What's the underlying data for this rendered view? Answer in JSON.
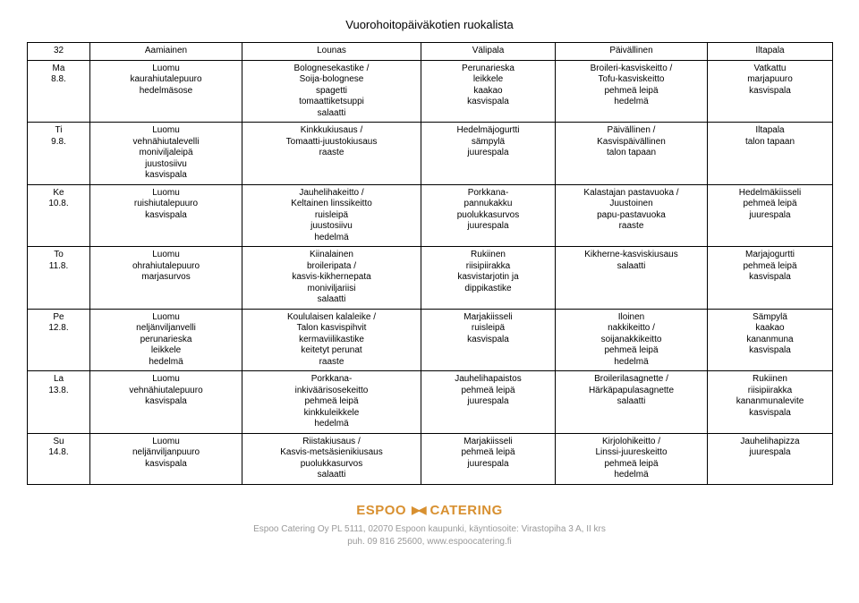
{
  "title": "Vuorohoitopäiväkotien ruokalista",
  "week": "32",
  "headers": [
    "Aamiainen",
    "Lounas",
    "Välipala",
    "Päivällinen",
    "Iltapala"
  ],
  "rows": [
    {
      "day": "Ma\n8.8.",
      "cells": [
        "Luomu\nkaurahiutalepuuro\nhedelmäsose",
        "Bolognesekastike /\nSoija-bolognese\nspagetti\ntomaattiketsuppi\nsalaatti",
        "Perunarieska\nleikkele\nkaakao\nkasvispala",
        "Broileri-kasviskeitto /\nTofu-kasviskeitto\npehmeä leipä\nhedelmä",
        "Vatkattu\nmarjapuuro\nkasvispala"
      ]
    },
    {
      "day": "Ti\n9.8.",
      "cells": [
        "Luomu\nvehnähiutalevelli\nmoniviljaleipä\njuustosiivu\nkasvispala",
        "Kinkkukiusaus /\nTomaatti-juustokiusaus\nraaste",
        "Hedelmäjogurtti\nsämpylä\njuurespala",
        "Päivällinen /\nKasvispäivällinen\ntalon tapaan",
        "Iltapala\ntalon tapaan"
      ]
    },
    {
      "day": "Ke\n10.8.",
      "cells": [
        "Luomu\nruishiutalepuuro\nkasvispala",
        "Jauhelihakeitto /\nKeltainen linssikeitto\nruisleipä\njuustosiivu\nhedelmä",
        "Porkkana-\npannukakku\npuolukkasurvos\njuurespala",
        "Kalastajan pastavuoka /\nJuustoinen\npapu-pastavuoka\nraaste",
        "Hedelmäkiisseli\npehmeä leipä\njuurespala"
      ]
    },
    {
      "day": "To\n11.8.",
      "cells": [
        "Luomu\nohrahiutalepuuro\nmarjasurvos",
        "Kiinalainen\nbroileripata /\nkasvis-kikhernepata\nmoniviljariisi\nsalaatti",
        "Rukiinen\nriisipiirakka\nkasvistarjotin ja\ndippikastike",
        "Kikherne-kasviskiusaus\nsalaatti",
        "Marjajogurtti\npehmeä leipä\nkasvispala"
      ]
    },
    {
      "day": "Pe\n12.8.",
      "cells": [
        "Luomu\nneljänviljanvelli\nperunarieska\nleikkele\nhedelmä",
        "Koululaisen kalaleike /\nTalon kasvispihvit\nkermaviilikastike\nkeitetyt perunat\nraaste",
        "Marjakiisseli\nruisleipä\nkasvispala",
        "Iloinen\nnakkikeitto /\nsoijanakkikeitto\npehmeä leipä\nhedelmä",
        "Sämpylä\nkaakao\nkananmuna\nkasvispala"
      ]
    },
    {
      "day": "La\n13.8.",
      "cells": [
        "Luomu\nvehnähiutalepuuro\nkasvispala",
        "Porkkana-\ninkiväärisosekeitto\npehmeä leipä\nkinkkuleikkele\nhedelmä",
        "Jauhelihapaistos\npehmeä leipä\njuurespala",
        "Broilerilasagnette /\nHärkäpapulasagnette\nsalaatti",
        "Rukiinen\nriisipiirakka\nkananmunalevite\nkasvispala"
      ]
    },
    {
      "day": "Su\n14.8.",
      "cells": [
        "Luomu\nneljänviljanpuuro\nkasvispala",
        "Riistakiusaus /\nKasvis-metsäsienikiusaus\npuolukkasurvos\nsalaatti",
        "Marjakiisseli\npehmeä leipä\njuurespala",
        "Kirjolohikeitto /\nLinssi-juureskeitto\npehmeä leipä\nhedelmä",
        "Jauhelihapizza\njuurespala"
      ]
    }
  ],
  "footer": {
    "brand_left": "ESPOO",
    "brand_right": "CATERING",
    "line1": "Espoo Catering Oy PL 5111, 02070 Espoon kaupunki, käyntiosoite: Virastopiha 3 A, II krs",
    "line2": "puh. 09 816 25600, www.espoocatering.fi"
  }
}
